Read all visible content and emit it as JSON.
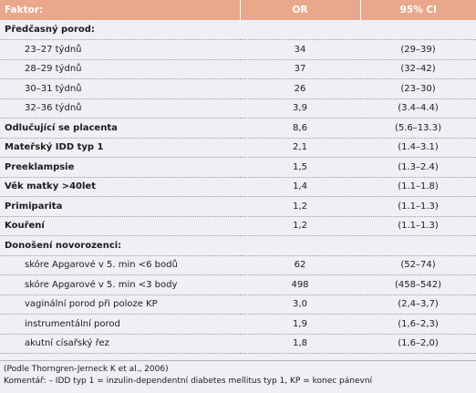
{
  "table": {
    "headers": [
      "Faktor:",
      "OR",
      "95% CI"
    ],
    "rows": [
      {
        "label": "Předčasný porod:",
        "or": "",
        "ci": "",
        "kind": "main"
      },
      {
        "label": "23–27 týdnů",
        "or": "34",
        "ci": "(29–39)",
        "kind": "sub"
      },
      {
        "label": "28–29 týdnů",
        "or": "37",
        "ci": "(32–42)",
        "kind": "sub"
      },
      {
        "label": "30–31 týdnů",
        "or": "26",
        "ci": "(23–30)",
        "kind": "sub"
      },
      {
        "label": "32–36 týdnů",
        "or": "3,9",
        "ci": "(3.4–4.4)",
        "kind": "sub"
      },
      {
        "label": "Odlučující se placenta",
        "or": "8,6",
        "ci": "(5.6–13.3)",
        "kind": "main"
      },
      {
        "label": "Mateřský IDD typ 1",
        "or": "2,1",
        "ci": "(1.4–3.1)",
        "kind": "main"
      },
      {
        "label": "Preeklampsie",
        "or": "1,5",
        "ci": "(1.3–2.4)",
        "kind": "main"
      },
      {
        "label": "Věk matky >40let",
        "or": "1,4",
        "ci": "(1.1–1.8)",
        "kind": "main"
      },
      {
        "label": "Primiparita",
        "or": "1,2",
        "ci": "(1.1–1.3)",
        "kind": "main"
      },
      {
        "label": "Kouření",
        "or": "1,2",
        "ci": "(1.1–1.3)",
        "kind": "main"
      },
      {
        "label": "Donošení novorozenci:",
        "or": "",
        "ci": "",
        "kind": "main"
      },
      {
        "label": "skóre Apgarové v 5. min <6 bodů",
        "or": "62",
        "ci": "(52–74)",
        "kind": "sub"
      },
      {
        "label": "skóre Apgarové v 5. min <3 body",
        "or": "498",
        "ci": "(458–542)",
        "kind": "sub"
      },
      {
        "label": "vaginální porod při poloze KP",
        "or": "3,0",
        "ci": "(2,4–3,7)",
        "kind": "sub"
      },
      {
        "label": "instrumentální porod",
        "or": "1,9",
        "ci": "(1,6–2,3)",
        "kind": "sub"
      },
      {
        "label": "akutní císařský řez",
        "or": "1,8",
        "ci": "(1,6–2,0)",
        "kind": "sub"
      }
    ]
  },
  "footnote": {
    "source": "(Podle Thorngren-Jerneck K et al., 2006)",
    "comment": "Komentář: – IDD typ 1 = inzulin-dependentní diabetes mellitus typ 1, KP = konec pánevní"
  },
  "colors": {
    "header_bg": "#e9a78b",
    "header_text": "#ffffff",
    "body_bg": "#efeff4"
  }
}
